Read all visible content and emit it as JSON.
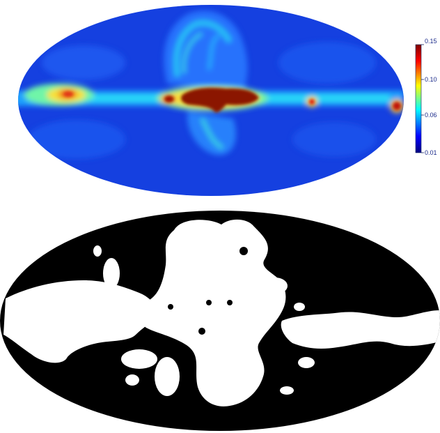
{
  "panels": [
    {
      "name": "emission-map",
      "kind": "mollweide-heatmap",
      "colormap": "jet"
    },
    {
      "name": "binary-mask",
      "kind": "mollweide-mask",
      "colors": {
        "masked": "#000000",
        "unmasked": "#ffffff"
      }
    }
  ],
  "colorbar": {
    "colors": [
      "#00007f",
      "#0000ff",
      "#00ffff",
      "#ffff00",
      "#ff0000",
      "#7f0000"
    ],
    "ticks": [
      "0.15",
      "0.10",
      "0.06",
      "0.01"
    ]
  }
}
